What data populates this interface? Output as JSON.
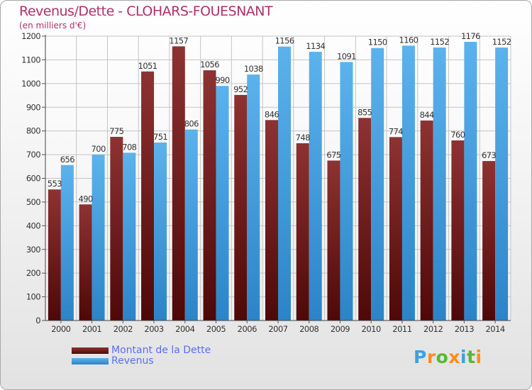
{
  "header": {
    "title": "Revenus/Dette - CLOHARS-FOUESNANT",
    "subtitle": "(en milliers d'€)"
  },
  "colors": {
    "dette": "#8b2a2a",
    "dette_dark": "#4a0a0a",
    "revenus": "#5aaee8",
    "revenus_dark": "#2a82c8",
    "title": "#b0306a",
    "legend_text": "#5a6ef0"
  },
  "legend": {
    "dette_label": "Montant de la Dette",
    "revenus_label": "Revenus"
  },
  "logo": {
    "letters": [
      "P",
      "r",
      "o",
      "x",
      "i",
      "t",
      "i"
    ],
    "colors": [
      "#3ca0e0",
      "#ff8c1a",
      "#58b834",
      "#ff8c1a",
      "#3ca0e0",
      "#58b834",
      "#ff8c1a"
    ]
  },
  "chart_data": {
    "type": "bar",
    "title": "Revenus/Dette - CLOHARS-FOUESNANT",
    "ylabel": "(en milliers d'€)",
    "xlabel": "",
    "categories": [
      "2000",
      "2001",
      "2002",
      "2003",
      "2004",
      "2005",
      "2006",
      "2007",
      "2008",
      "2009",
      "2010",
      "2011",
      "2012",
      "2013",
      "2014"
    ],
    "series": [
      {
        "name": "Montant de la Dette",
        "values": [
          553,
          490,
          775,
          1051,
          1157,
          1056,
          952,
          846,
          748,
          675,
          855,
          774,
          844,
          760,
          673
        ]
      },
      {
        "name": "Revenus",
        "values": [
          656,
          700,
          708,
          751,
          806,
          990,
          1038,
          1156,
          1134,
          1091,
          1150,
          1160,
          1152,
          1176,
          1152
        ]
      }
    ],
    "ylim": [
      0,
      1200
    ],
    "yticks": [
      0,
      100,
      200,
      300,
      400,
      500,
      600,
      700,
      800,
      900,
      1000,
      1100,
      1200
    ],
    "grid": true
  }
}
